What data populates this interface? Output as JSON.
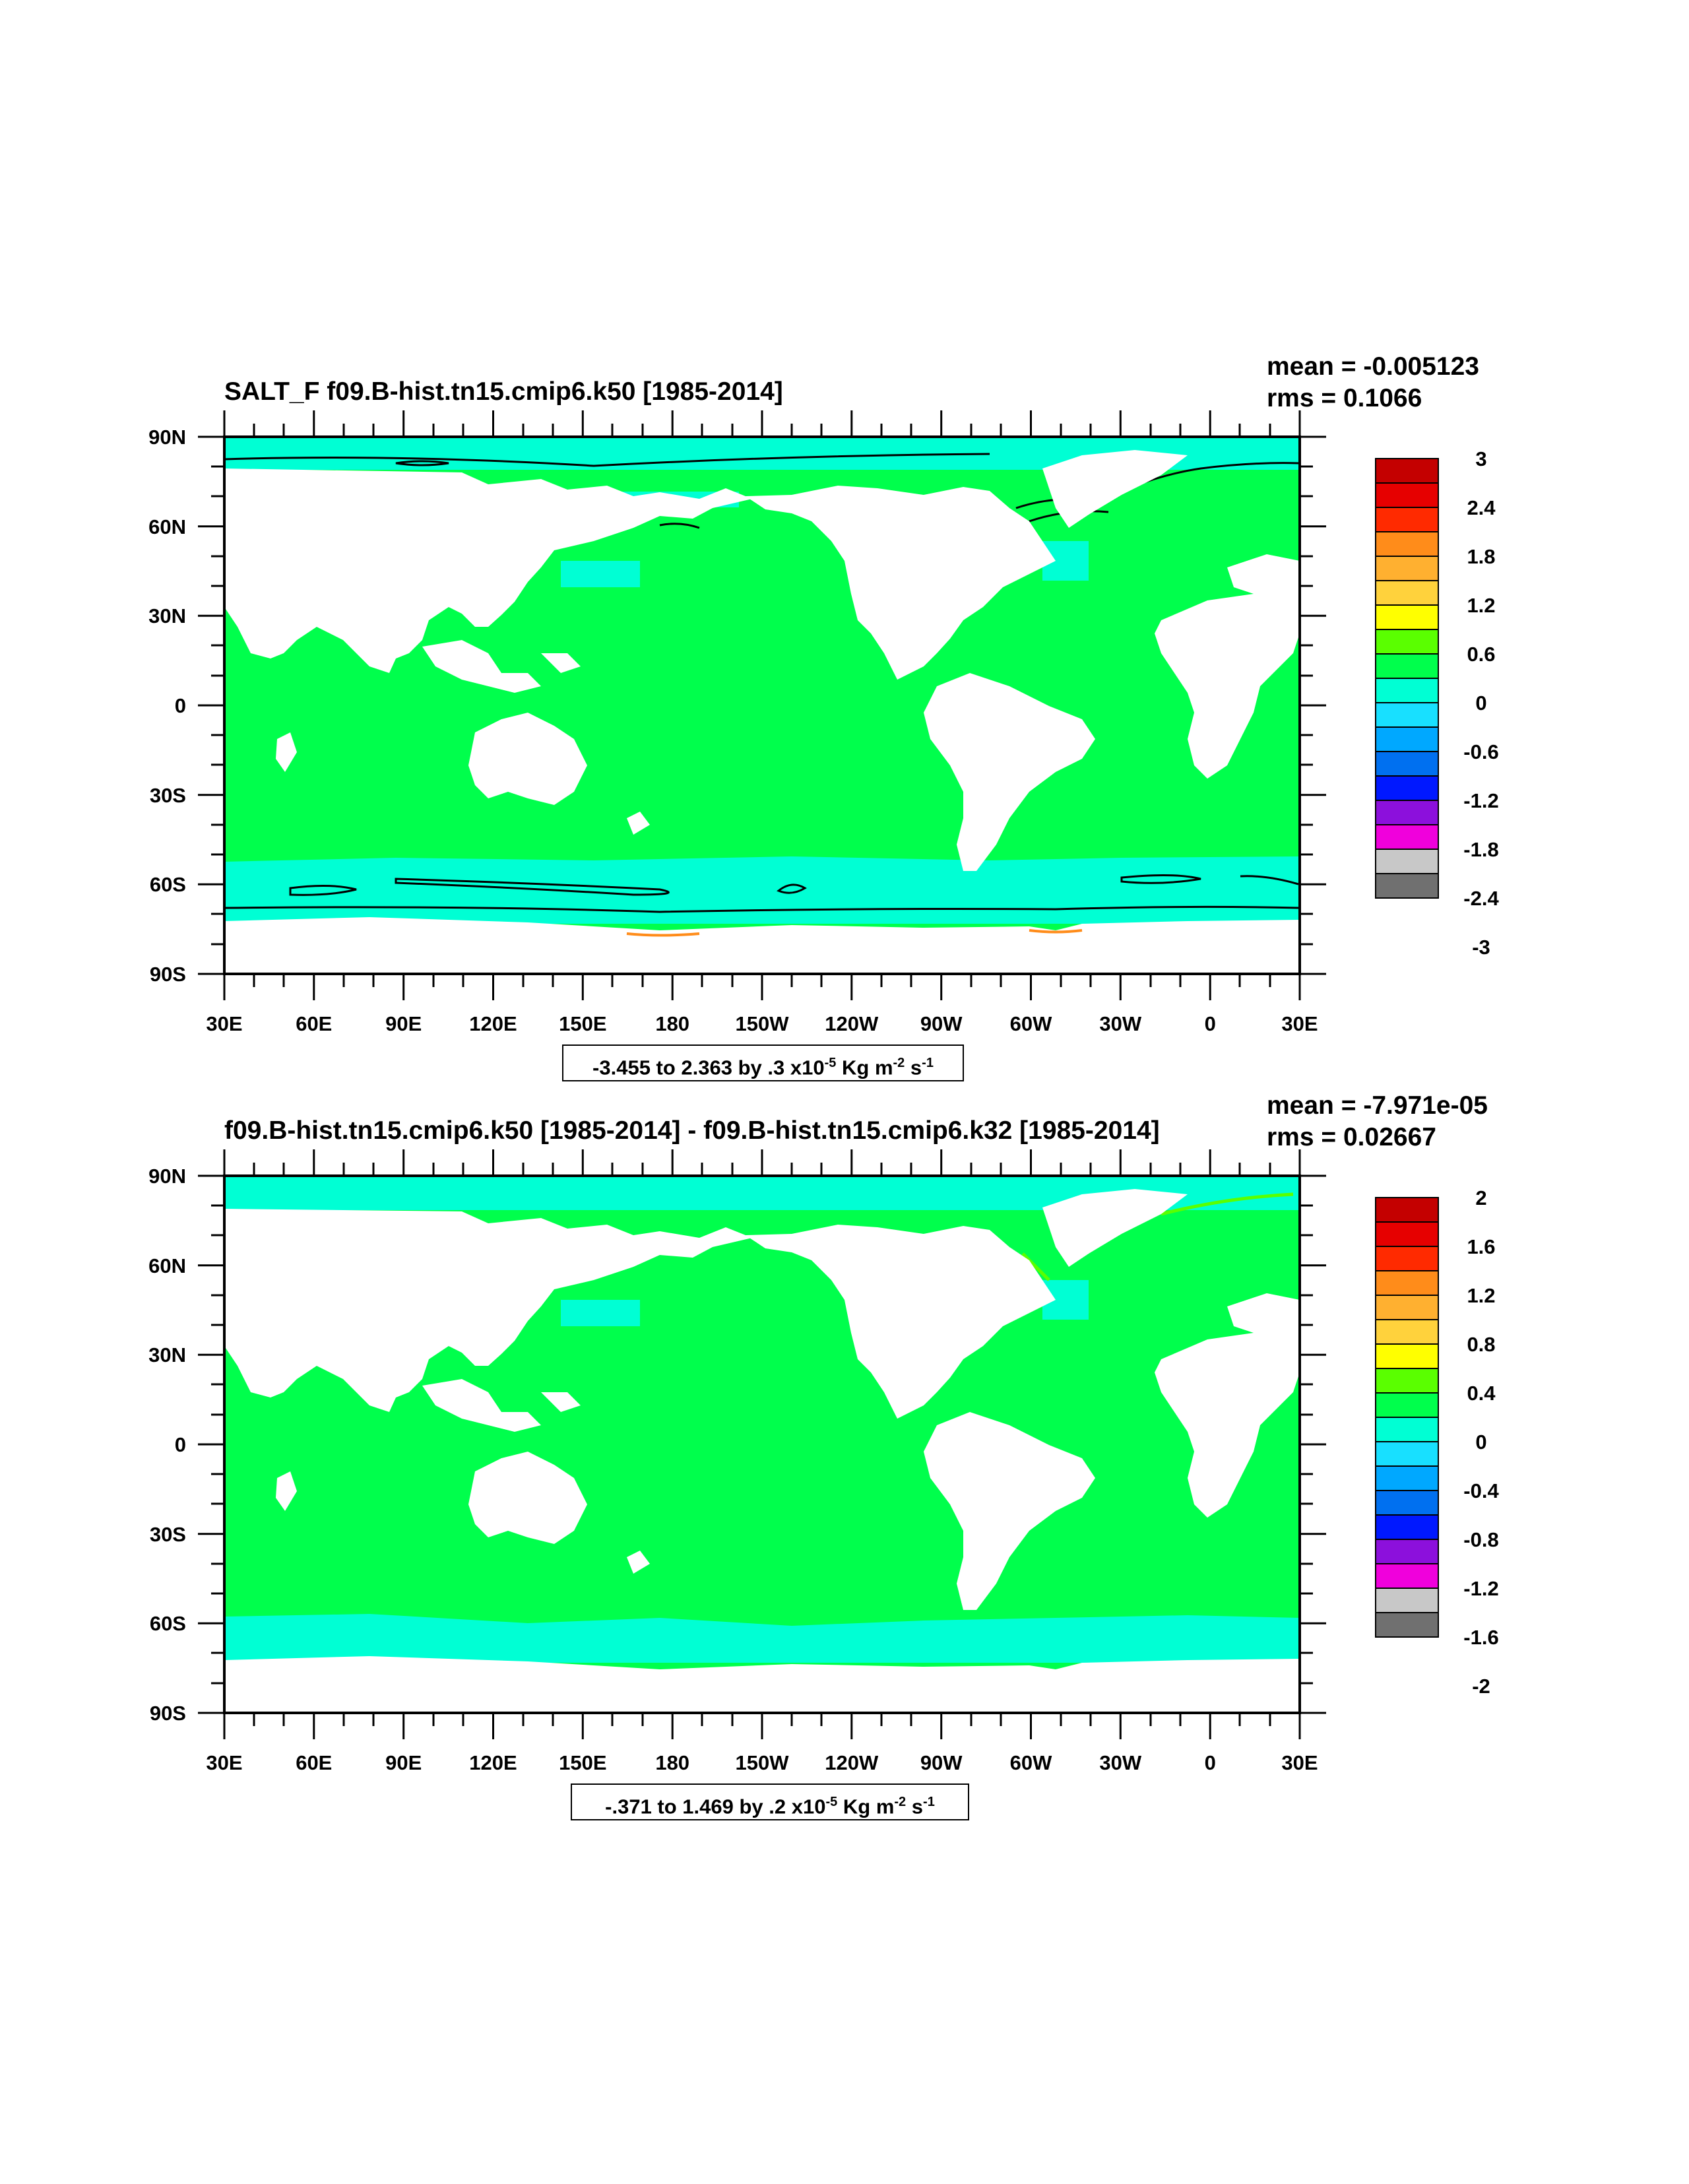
{
  "panels": [
    {
      "title": "SALT_F f09.B-hist.tn15.cmip6.k50 [1985-2014]",
      "mean": "mean = -0.005123",
      "rms": "rms = 0.1066",
      "colorbar_labels": [
        "3",
        "2.4",
        "1.8",
        "1.2",
        "0.6",
        "0",
        "-0.6",
        "-1.2",
        "-1.8",
        "-2.4",
        "-3"
      ],
      "note": {
        "range": "-3.455 to 2.363 by .3 x10",
        "exp": "-5",
        "unit1": " Kg m",
        "exp2": "-2",
        "unit2": " s",
        "exp3": "-1"
      }
    },
    {
      "title": "f09.B-hist.tn15.cmip6.k50 [1985-2014] - f09.B-hist.tn15.cmip6.k32 [1985-2014]",
      "mean": "mean = -7.971e-05",
      "rms": "rms = 0.02667",
      "colorbar_labels": [
        "2",
        "1.6",
        "1.2",
        "0.8",
        "0.4",
        "0",
        "-0.4",
        "-0.8",
        "-1.2",
        "-1.6",
        "-2"
      ],
      "note": {
        "range": "-.371 to 1.469 by .2 x10",
        "exp": "-5",
        "unit1": " Kg m",
        "exp2": "-2",
        "unit2": " s",
        "exp3": "-1"
      }
    }
  ],
  "lat_labels": [
    "90N",
    "60N",
    "30N",
    "0",
    "30S",
    "60S",
    "90S"
  ],
  "lon_labels": [
    "30E",
    "60E",
    "90E",
    "120E",
    "150E",
    "180",
    "150W",
    "120W",
    "90W",
    "60W",
    "30W",
    "0",
    "30E"
  ],
  "colors": {
    "ocean": "#00ff4c",
    "ocean_cool": "#00ffd4",
    "land": "#ffffff",
    "colorbar": [
      "#c40000",
      "#e60000",
      "#ff2a00",
      "#ff8c1a",
      "#ffb030",
      "#ffd23c",
      "#ffff00",
      "#5aff00",
      "#00ff4c",
      "#00ffd4",
      "#18e0ff",
      "#00a8ff",
      "#0070f0",
      "#0018ff",
      "#8c10dc",
      "#f000dc",
      "#c8c8c8",
      "#707070"
    ]
  }
}
